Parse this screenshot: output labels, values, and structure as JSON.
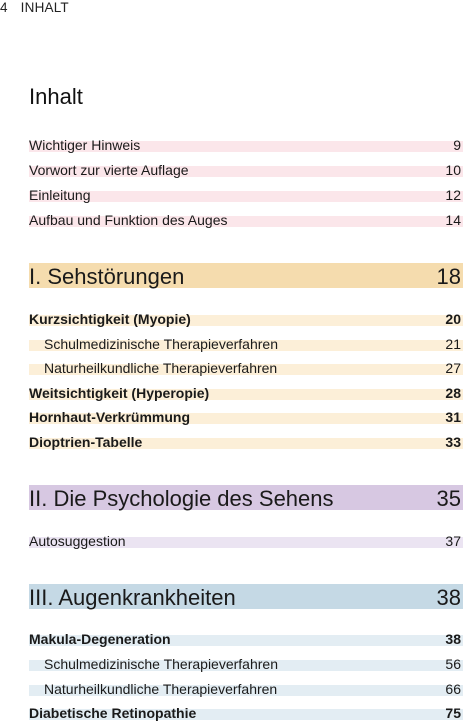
{
  "running_head": {
    "page_number": "4",
    "label": "INHALT"
  },
  "title": "Inhalt",
  "intro": [
    {
      "label": "Wichtiger Hinweis",
      "page": "9"
    },
    {
      "label": "Vorwort zur vierte Auflage",
      "page": "10"
    },
    {
      "label": "Einleitung",
      "page": "12"
    },
    {
      "label": "Aufbau und Funktion des Auges",
      "page": "14"
    }
  ],
  "chapters": [
    {
      "label": "I. Sehstörungen",
      "page": "18",
      "color": "#f5dcae",
      "entries": [
        {
          "label": "Kurzsichtigkeit (Myopie)",
          "page": "20"
        },
        {
          "label": "Schulmedizinische Therapieverfahren",
          "page": "21"
        },
        {
          "label": "Naturheilkundliche Therapieverfahren",
          "page": "27"
        },
        {
          "label": "Weitsichtigkeit (Hyperopie)",
          "page": "28"
        },
        {
          "label": "Hornhaut-Verkrümmung",
          "page": "31"
        },
        {
          "label": "Dioptrien-Tabelle",
          "page": "33"
        }
      ]
    },
    {
      "label": "II. Die Psychologie des Sehens",
      "page": "35",
      "color": "#d7c8e2",
      "entries": [
        {
          "label": "Autosuggestion",
          "page": "37"
        }
      ]
    },
    {
      "label": "III. Augenkrankheiten",
      "page": "38",
      "color": "#c5d9e5",
      "entries": [
        {
          "label": "Makula-Degeneration",
          "page": "38"
        },
        {
          "label": "Schulmedizinische Therapieverfahren",
          "page": "56"
        },
        {
          "label": "Naturheilkundliche Therapieverfahren",
          "page": "66"
        },
        {
          "label": "Diabetische Retinopathie",
          "page": "75"
        }
      ]
    }
  ]
}
